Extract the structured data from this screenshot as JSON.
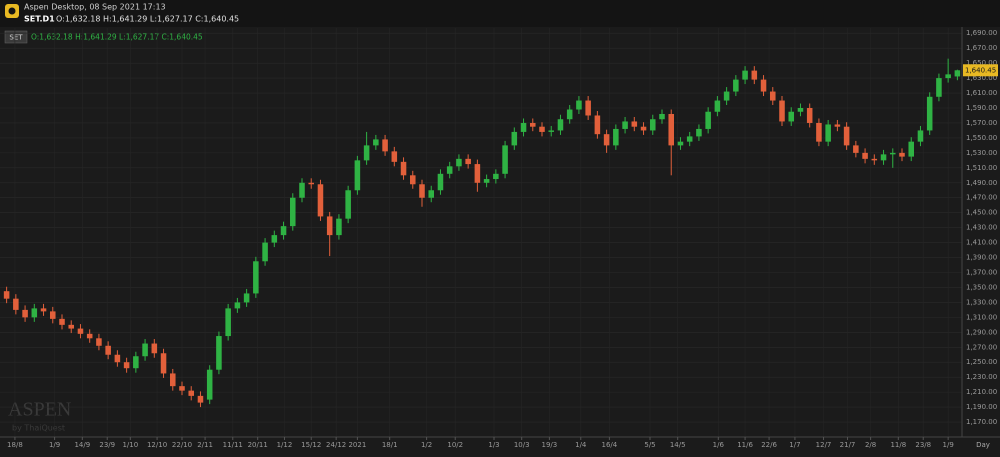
{
  "header": {
    "app": "Aspen Desktop, 08 Sep 2021 17:13",
    "symbol": "SET.D1",
    "ohlc": "O:1,632.18 H:1,641.29 L:1,627.17 C:1,640.45"
  },
  "chart_data": {
    "type": "candlestick",
    "legend_symbol": "SET",
    "legend_ohlc": "O:1,632.18 H:1,641.29 L:1,627.17 C:1,640.45",
    "open": [
      1345,
      1335,
      1320,
      1310,
      1322,
      1318,
      1308,
      1300,
      1295,
      1288,
      1282,
      1272,
      1260,
      1250,
      1242,
      1258,
      1275,
      1262,
      1235,
      1218,
      1212,
      1205,
      1200,
      1240,
      1285,
      1322,
      1330,
      1342,
      1385,
      1410,
      1420,
      1432,
      1470,
      1490,
      1488,
      1445,
      1420,
      1442,
      1480,
      1520,
      1540,
      1548,
      1532,
      1518,
      1500,
      1488,
      1470,
      1480,
      1502,
      1512,
      1522,
      1515,
      1490,
      1495,
      1502,
      1540,
      1558,
      1570,
      1565,
      1558,
      1560,
      1575,
      1588,
      1600,
      1580,
      1555,
      1540,
      1562,
      1572,
      1565,
      1560,
      1575,
      1582,
      1540,
      1545,
      1552,
      1562,
      1585,
      1600,
      1612,
      1628,
      1640,
      1628,
      1612,
      1600,
      1572,
      1585,
      1590,
      1570,
      1545,
      1568,
      1565,
      1540,
      1530,
      1522,
      1520,
      1528,
      1530,
      1525,
      1545,
      1560,
      1605,
      1630,
      1632.18
    ],
    "high": [
      1351,
      1341,
      1326,
      1328,
      1328,
      1324,
      1314,
      1306,
      1301,
      1294,
      1288,
      1278,
      1266,
      1256,
      1264,
      1281,
      1281,
      1268,
      1241,
      1224,
      1218,
      1211,
      1246,
      1291,
      1328,
      1336,
      1348,
      1391,
      1416,
      1426,
      1438,
      1476,
      1496,
      1496,
      1494,
      1451,
      1448,
      1486,
      1526,
      1558,
      1554,
      1554,
      1538,
      1524,
      1506,
      1494,
      1486,
      1508,
      1518,
      1528,
      1528,
      1521,
      1501,
      1508,
      1546,
      1564,
      1576,
      1576,
      1571,
      1566,
      1581,
      1594,
      1606,
      1606,
      1586,
      1561,
      1568,
      1578,
      1578,
      1571,
      1581,
      1588,
      1588,
      1551,
      1558,
      1568,
      1591,
      1606,
      1618,
      1634,
      1646,
      1646,
      1634,
      1618,
      1606,
      1591,
      1596,
      1596,
      1576,
      1574,
      1574,
      1571,
      1546,
      1536,
      1528,
      1534,
      1536,
      1536,
      1551,
      1566,
      1611,
      1636,
      1656,
      1641.29
    ],
    "low": [
      1329,
      1314,
      1304,
      1304,
      1312,
      1302,
      1294,
      1289,
      1282,
      1276,
      1266,
      1254,
      1244,
      1236,
      1236,
      1252,
      1256,
      1229,
      1212,
      1206,
      1199,
      1190,
      1194,
      1234,
      1279,
      1316,
      1324,
      1336,
      1379,
      1404,
      1414,
      1426,
      1464,
      1482,
      1439,
      1392,
      1414,
      1436,
      1474,
      1514,
      1534,
      1526,
      1512,
      1494,
      1482,
      1458,
      1464,
      1474,
      1496,
      1506,
      1509,
      1478,
      1484,
      1489,
      1496,
      1534,
      1552,
      1559,
      1552,
      1552,
      1554,
      1569,
      1582,
      1574,
      1549,
      1530,
      1534,
      1556,
      1559,
      1554,
      1554,
      1569,
      1500,
      1534,
      1539,
      1546,
      1556,
      1579,
      1594,
      1606,
      1622,
      1622,
      1606,
      1594,
      1566,
      1566,
      1579,
      1564,
      1539,
      1539,
      1559,
      1534,
      1524,
      1516,
      1514,
      1514,
      1510,
      1519,
      1519,
      1539,
      1554,
      1599,
      1624,
      1627.17
    ],
    "close": [
      1335,
      1320,
      1310,
      1322,
      1318,
      1308,
      1300,
      1295,
      1288,
      1282,
      1272,
      1260,
      1250,
      1242,
      1258,
      1275,
      1262,
      1235,
      1218,
      1212,
      1205,
      1196,
      1240,
      1285,
      1322,
      1330,
      1342,
      1385,
      1410,
      1420,
      1432,
      1470,
      1490,
      1488,
      1445,
      1420,
      1442,
      1480,
      1520,
      1540,
      1548,
      1532,
      1518,
      1500,
      1488,
      1470,
      1480,
      1502,
      1512,
      1522,
      1515,
      1490,
      1495,
      1502,
      1540,
      1558,
      1570,
      1565,
      1558,
      1560,
      1575,
      1588,
      1600,
      1580,
      1555,
      1540,
      1562,
      1572,
      1565,
      1560,
      1575,
      1582,
      1540,
      1545,
      1552,
      1562,
      1585,
      1600,
      1612,
      1628,
      1640,
      1628,
      1612,
      1600,
      1572,
      1585,
      1590,
      1570,
      1545,
      1568,
      1565,
      1540,
      1530,
      1522,
      1520,
      1528,
      1530,
      1525,
      1545,
      1560,
      1605,
      1630,
      1635,
      1640.45
    ],
    "up_color": "#2fb344",
    "down_color": "#e2603b",
    "xlim": [
      -0.5,
      103.5
    ],
    "xticks": [
      {
        "value": 0.9,
        "label": "18/8"
      },
      {
        "value": 5.2,
        "label": "1/9"
      },
      {
        "value": 8.2,
        "label": "14/9"
      },
      {
        "value": 10.9,
        "label": "23/9"
      },
      {
        "value": 13.4,
        "label": "1/10"
      },
      {
        "value": 16.3,
        "label": "12/10"
      },
      {
        "value": 19,
        "label": "22/10"
      },
      {
        "value": 21.5,
        "label": "2/11"
      },
      {
        "value": 24.5,
        "label": "11/11"
      },
      {
        "value": 27.2,
        "label": "20/11"
      },
      {
        "value": 30.1,
        "label": "1/12"
      },
      {
        "value": 33,
        "label": "15/12"
      },
      {
        "value": 35.7,
        "label": "24/12"
      },
      {
        "value": 38,
        "label": "2021"
      },
      {
        "value": 41.5,
        "label": "18/1"
      },
      {
        "value": 45.5,
        "label": "1/2"
      },
      {
        "value": 48.6,
        "label": "10/2"
      },
      {
        "value": 52.8,
        "label": "1/3"
      },
      {
        "value": 55.8,
        "label": "10/3"
      },
      {
        "value": 58.8,
        "label": "19/3"
      },
      {
        "value": 62.2,
        "label": "1/4"
      },
      {
        "value": 65.3,
        "label": "16/4"
      },
      {
        "value": 69.7,
        "label": "5/5"
      },
      {
        "value": 72.7,
        "label": "14/5"
      },
      {
        "value": 77.1,
        "label": "1/6"
      },
      {
        "value": 80,
        "label": "11/6"
      },
      {
        "value": 82.6,
        "label": "22/6"
      },
      {
        "value": 85.4,
        "label": "1/7"
      },
      {
        "value": 88.5,
        "label": "12/7"
      },
      {
        "value": 91.1,
        "label": "21/7"
      },
      {
        "value": 93.6,
        "label": "2/8"
      },
      {
        "value": 96.6,
        "label": "11/8"
      },
      {
        "value": 99.3,
        "label": "23/8"
      },
      {
        "value": 102,
        "label": "1/9"
      }
    ],
    "x_unit_label": "Day",
    "ylim": [
      1150,
      1697
    ],
    "yticks": [
      {
        "value": 1170,
        "label": "1,170.00"
      },
      {
        "value": 1190,
        "label": "1,190.00"
      },
      {
        "value": 1210,
        "label": "1,210.00"
      },
      {
        "value": 1230,
        "label": "1,230.00"
      },
      {
        "value": 1250,
        "label": "1,250.00"
      },
      {
        "value": 1270,
        "label": "1,270.00"
      },
      {
        "value": 1290,
        "label": "1,290.00"
      },
      {
        "value": 1310,
        "label": "1,310.00"
      },
      {
        "value": 1330,
        "label": "1,330.00"
      },
      {
        "value": 1350,
        "label": "1,350.00"
      },
      {
        "value": 1370,
        "label": "1,370.00"
      },
      {
        "value": 1390,
        "label": "1,390.00"
      },
      {
        "value": 1410,
        "label": "1,410.00"
      },
      {
        "value": 1430,
        "label": "1,430.00"
      },
      {
        "value": 1450,
        "label": "1,450.00"
      },
      {
        "value": 1470,
        "label": "1,470.00"
      },
      {
        "value": 1490,
        "label": "1,490.00"
      },
      {
        "value": 1510,
        "label": "1,510.00"
      },
      {
        "value": 1530,
        "label": "1,530.00"
      },
      {
        "value": 1550,
        "label": "1,550.00"
      },
      {
        "value": 1570,
        "label": "1,570.00"
      },
      {
        "value": 1590,
        "label": "1,590.00"
      },
      {
        "value": 1610,
        "label": "1,610.00"
      },
      {
        "value": 1630,
        "label": "1,630.00"
      },
      {
        "value": 1650,
        "label": "1,650.00"
      },
      {
        "value": 1670,
        "label": "1,670.00"
      },
      {
        "value": 1690,
        "label": "1,690.00"
      }
    ],
    "last_price": {
      "value": 1640.45,
      "label": "1,640.45"
    },
    "grid": true,
    "watermark": "ASPEN",
    "watermark_sub": "by ThaiQuest"
  }
}
